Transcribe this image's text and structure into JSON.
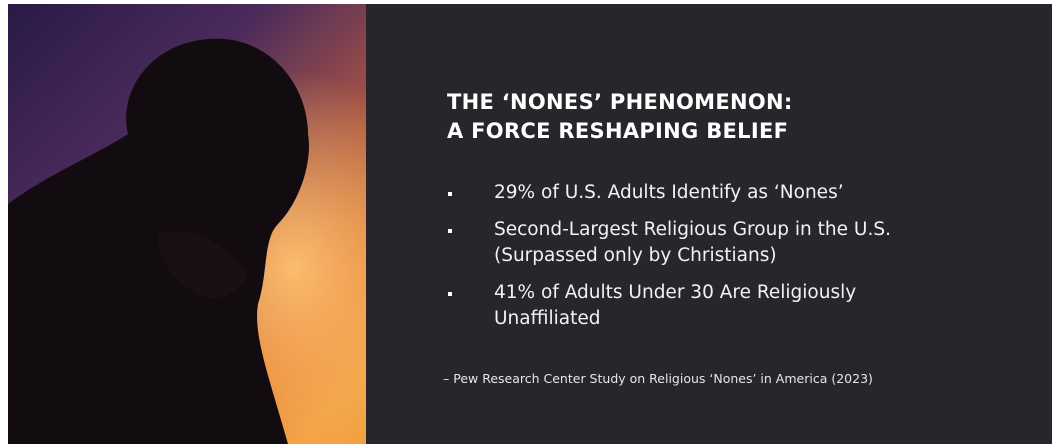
{
  "slide": {
    "title_lines": [
      "THE ‘NONES’ PHENOMENON:",
      "A FORCE RESHAPING BELIEF"
    ],
    "bullets": [
      "29% of U.S. Adults Identify as ‘Nones’",
      "Second-Largest Religious Group in the U.S. (Surpassed only by Christians)",
      "41% of Adults Under 30 Are Religiously Unaffiliated"
    ],
    "source": "– Pew Research Center Study on Religious ‘Nones’ in America (2023)"
  }
}
